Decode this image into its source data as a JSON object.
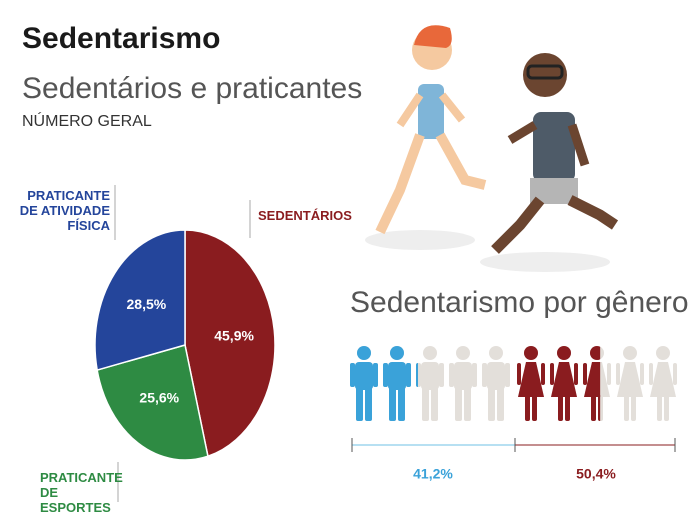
{
  "title": "Sedentarismo",
  "chart_data": [
    {
      "type": "pie",
      "title": "Sedentários e praticantes",
      "subtitle": "NÚMERO GERAL",
      "categories": [
        "SEDENTÁRIOS",
        "PRATICANTE DE ESPORTES",
        "PRATICANTE DE ATIVIDADE FÍSICA"
      ],
      "values": [
        45.9,
        25.6,
        28.5
      ],
      "value_labels": [
        "45,9%",
        "25,6%",
        "28,5%"
      ],
      "colors": [
        "#8a1c1f",
        "#2e8b43",
        "#24459b"
      ]
    },
    {
      "type": "pictogram",
      "title": "Sedentarismo por gênero",
      "values": [
        41.2,
        50.4
      ],
      "value_labels": [
        "41,2%",
        "50,4%"
      ],
      "colors": [
        "#3aa2d9",
        "#8a1c1f"
      ]
    }
  ]
}
